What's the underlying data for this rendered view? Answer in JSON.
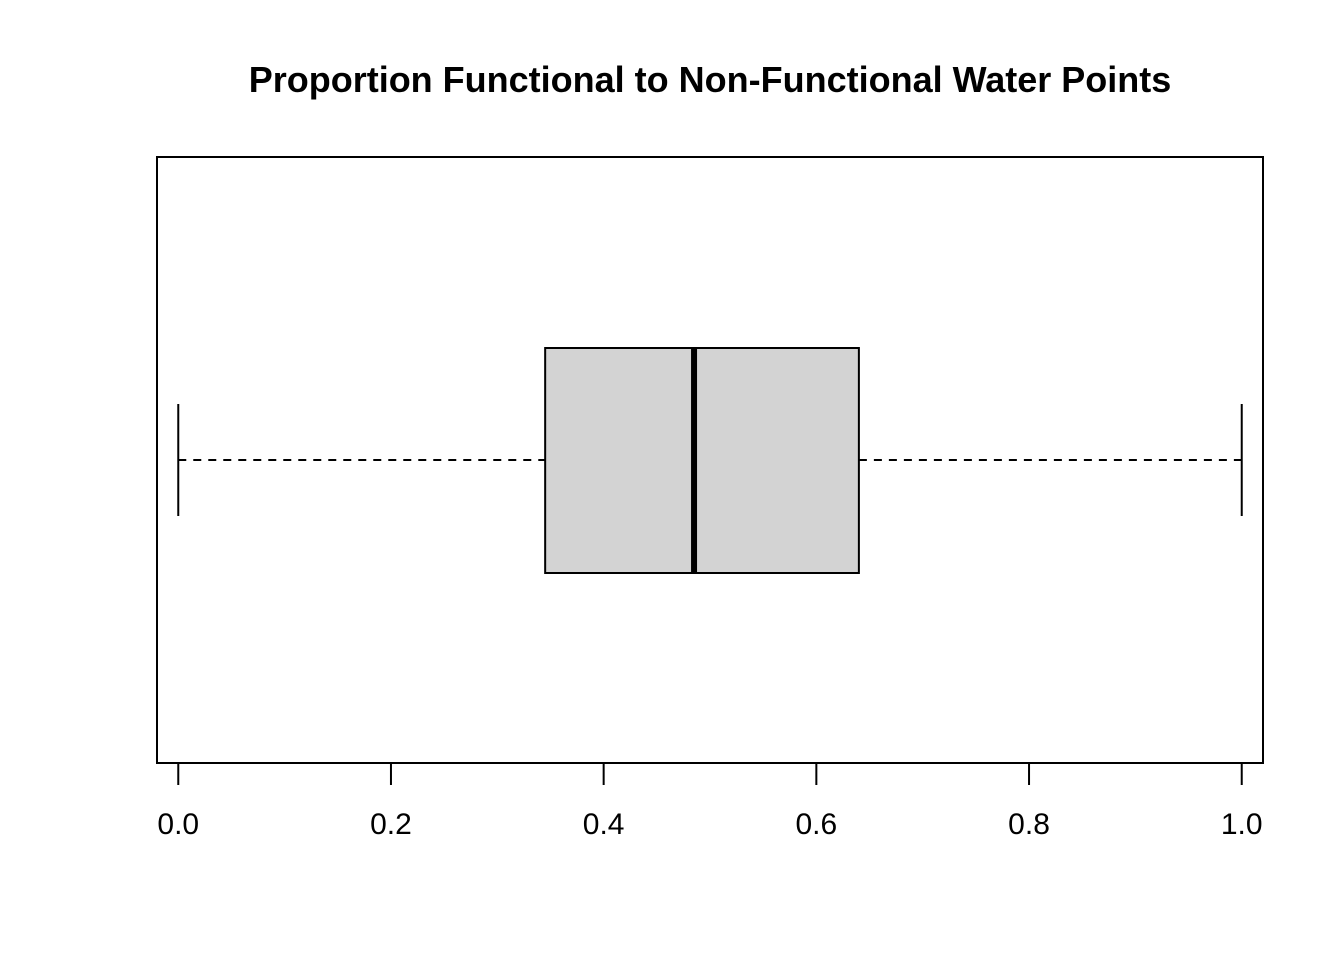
{
  "chart_data": {
    "type": "boxplot",
    "orientation": "horizontal",
    "title": "Proportion Functional to Non-Functional Water Points",
    "xlabel": "",
    "ylabel": "",
    "xlim": [
      -0.02,
      1.02
    ],
    "x_ticks": [
      0.0,
      0.2,
      0.4,
      0.6,
      0.8,
      1.0
    ],
    "x_tick_labels": [
      "0.0",
      "0.2",
      "0.4",
      "0.6",
      "0.8",
      "1.0"
    ],
    "box": {
      "whisker_low": 0.0,
      "q1": 0.345,
      "median": 0.485,
      "q3": 0.64,
      "whisker_high": 1.0
    },
    "box_fill": "#d3d3d3",
    "line_color": "#000000",
    "grid": false
  }
}
